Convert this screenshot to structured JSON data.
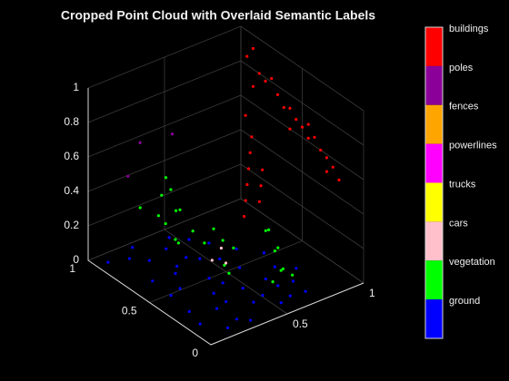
{
  "chart_data": {
    "type": "scatter3d",
    "title": "Cropped Point Cloud with Overlaid Semantic Labels",
    "xlim": [
      0,
      1
    ],
    "ylim": [
      0,
      1
    ],
    "zlim": [
      0,
      1
    ],
    "xticks": [
      0.5,
      1
    ],
    "yticks": [
      0,
      0.5,
      1
    ],
    "zticks": [
      0,
      0.2,
      0.4,
      0.6,
      0.8,
      1
    ],
    "grid": true,
    "series": [
      {
        "name": "buildings",
        "color": "#ff0000",
        "x": [
          1,
          1,
          1,
          1,
          1,
          1,
          1,
          1,
          1,
          1,
          1,
          1,
          1,
          1,
          1,
          1,
          1,
          1,
          1,
          1,
          0.95,
          0.9,
          0.85,
          0.8,
          0.75,
          0.7,
          0.9,
          0.85,
          0.8,
          0.95
        ],
        "y": [
          0.95,
          0.9,
          0.85,
          0.8,
          0.7,
          0.65,
          0.6,
          0.55,
          0.5,
          0.45,
          0.4,
          0.35,
          0.3,
          0.25,
          0.2,
          0.9,
          0.75,
          0.6,
          0.45,
          0.3,
          0.85,
          0.8,
          0.75,
          0.7,
          0.65,
          0.6,
          0.7,
          0.65,
          0.6,
          0.9
        ],
        "z": [
          0.85,
          0.92,
          0.8,
          0.78,
          0.75,
          0.7,
          0.72,
          0.68,
          0.66,
          0.62,
          0.65,
          0.6,
          0.58,
          0.55,
          0.5,
          0.7,
          0.82,
          0.6,
          0.7,
          0.5,
          0.45,
          0.4,
          0.35,
          0.3,
          0.25,
          0.2,
          0.35,
          0.3,
          0.25,
          0.55
        ]
      },
      {
        "name": "poles",
        "color": "#8b0099",
        "x": [
          0.35,
          0.1,
          0.3
        ],
        "y": [
          0.75,
          0.8,
          0.95
        ],
        "z": [
          0.73,
          0.55,
          0.6
        ]
      },
      {
        "name": "fences",
        "color": "#ffa500",
        "x": [],
        "y": [],
        "z": []
      },
      {
        "name": "powerlines",
        "color": "#ff00ff",
        "x": [],
        "y": [],
        "z": []
      },
      {
        "name": "trucks",
        "color": "#ffff00",
        "x": [],
        "y": [],
        "z": []
      },
      {
        "name": "cars",
        "color": "#ffc0cb",
        "x": [
          0.45,
          0.5,
          0.55
        ],
        "y": [
          0.55,
          0.5,
          0.6
        ],
        "z": [
          0.06,
          0.05,
          0.07
        ]
      },
      {
        "name": "vegetation",
        "color": "#00ff00",
        "x": [
          0.3,
          0.28,
          0.32,
          0.35,
          0.25,
          0.3,
          0.27,
          0.33,
          0.3,
          0.22,
          0.38,
          0.6,
          0.62,
          0.58,
          0.65,
          0.6,
          0.55,
          0.63,
          0.5,
          0.52,
          0.48,
          0.55,
          0.45,
          0.4,
          0.7
        ],
        "y": [
          0.7,
          0.75,
          0.65,
          0.72,
          0.68,
          0.8,
          0.6,
          0.7,
          0.74,
          0.85,
          0.62,
          0.2,
          0.25,
          0.15,
          0.22,
          0.3,
          0.18,
          0.12,
          0.6,
          0.55,
          0.65,
          0.5,
          0.45,
          0.35,
          0.4
        ],
        "z": [
          0.45,
          0.4,
          0.35,
          0.3,
          0.28,
          0.25,
          0.2,
          0.15,
          0.5,
          0.3,
          0.22,
          0.25,
          0.2,
          0.15,
          0.1,
          0.3,
          0.08,
          0.12,
          0.2,
          0.15,
          0.1,
          0.12,
          0.08,
          0.1,
          0.22
        ]
      },
      {
        "name": "ground",
        "color": "#0000ff",
        "x": [
          0.05,
          0.15,
          0.25,
          0.35,
          0.45,
          0.55,
          0.65,
          0.75,
          0.1,
          0.2,
          0.3,
          0.4,
          0.5,
          0.6,
          0.7,
          0.1,
          0.2,
          0.3,
          0.4,
          0.5,
          0.6,
          0.05,
          0.15,
          0.25,
          0.35,
          0.45,
          0.55,
          0.2,
          0.3,
          0.4,
          0.5,
          0.6,
          0.7,
          0.8,
          0.1,
          0.3,
          0.5,
          0.7,
          0.25,
          0.45
        ],
        "y": [
          0.9,
          0.85,
          0.95,
          0.8,
          0.9,
          0.7,
          0.6,
          0.5,
          0.6,
          0.5,
          0.65,
          0.4,
          0.55,
          0.3,
          0.35,
          0.3,
          0.2,
          0.25,
          0.15,
          0.2,
          0.1,
          0.15,
          0.05,
          0.1,
          0.45,
          0.3,
          0.45,
          0.75,
          0.05,
          0.7,
          0.8,
          0.2,
          0.2,
          0.3,
          0.45,
          0.35,
          0.05,
          0.1,
          0.6,
          0.65
        ],
        "z": [
          0.02,
          0.03,
          0.01,
          0.04,
          0.02,
          0.05,
          0.03,
          0.02,
          0.04,
          0.01,
          0.03,
          0.02,
          0.05,
          0.02,
          0.03,
          0.01,
          0.04,
          0.02,
          0.03,
          0.01,
          0.02,
          0.03,
          0.02,
          0.01,
          0.04,
          0.02,
          0.03,
          0.05,
          0.01,
          0.02,
          0.04,
          0.03,
          0.02,
          0.01,
          0.03,
          0.02,
          0.04,
          0.01,
          0.03,
          0.02
        ]
      }
    ]
  }
}
